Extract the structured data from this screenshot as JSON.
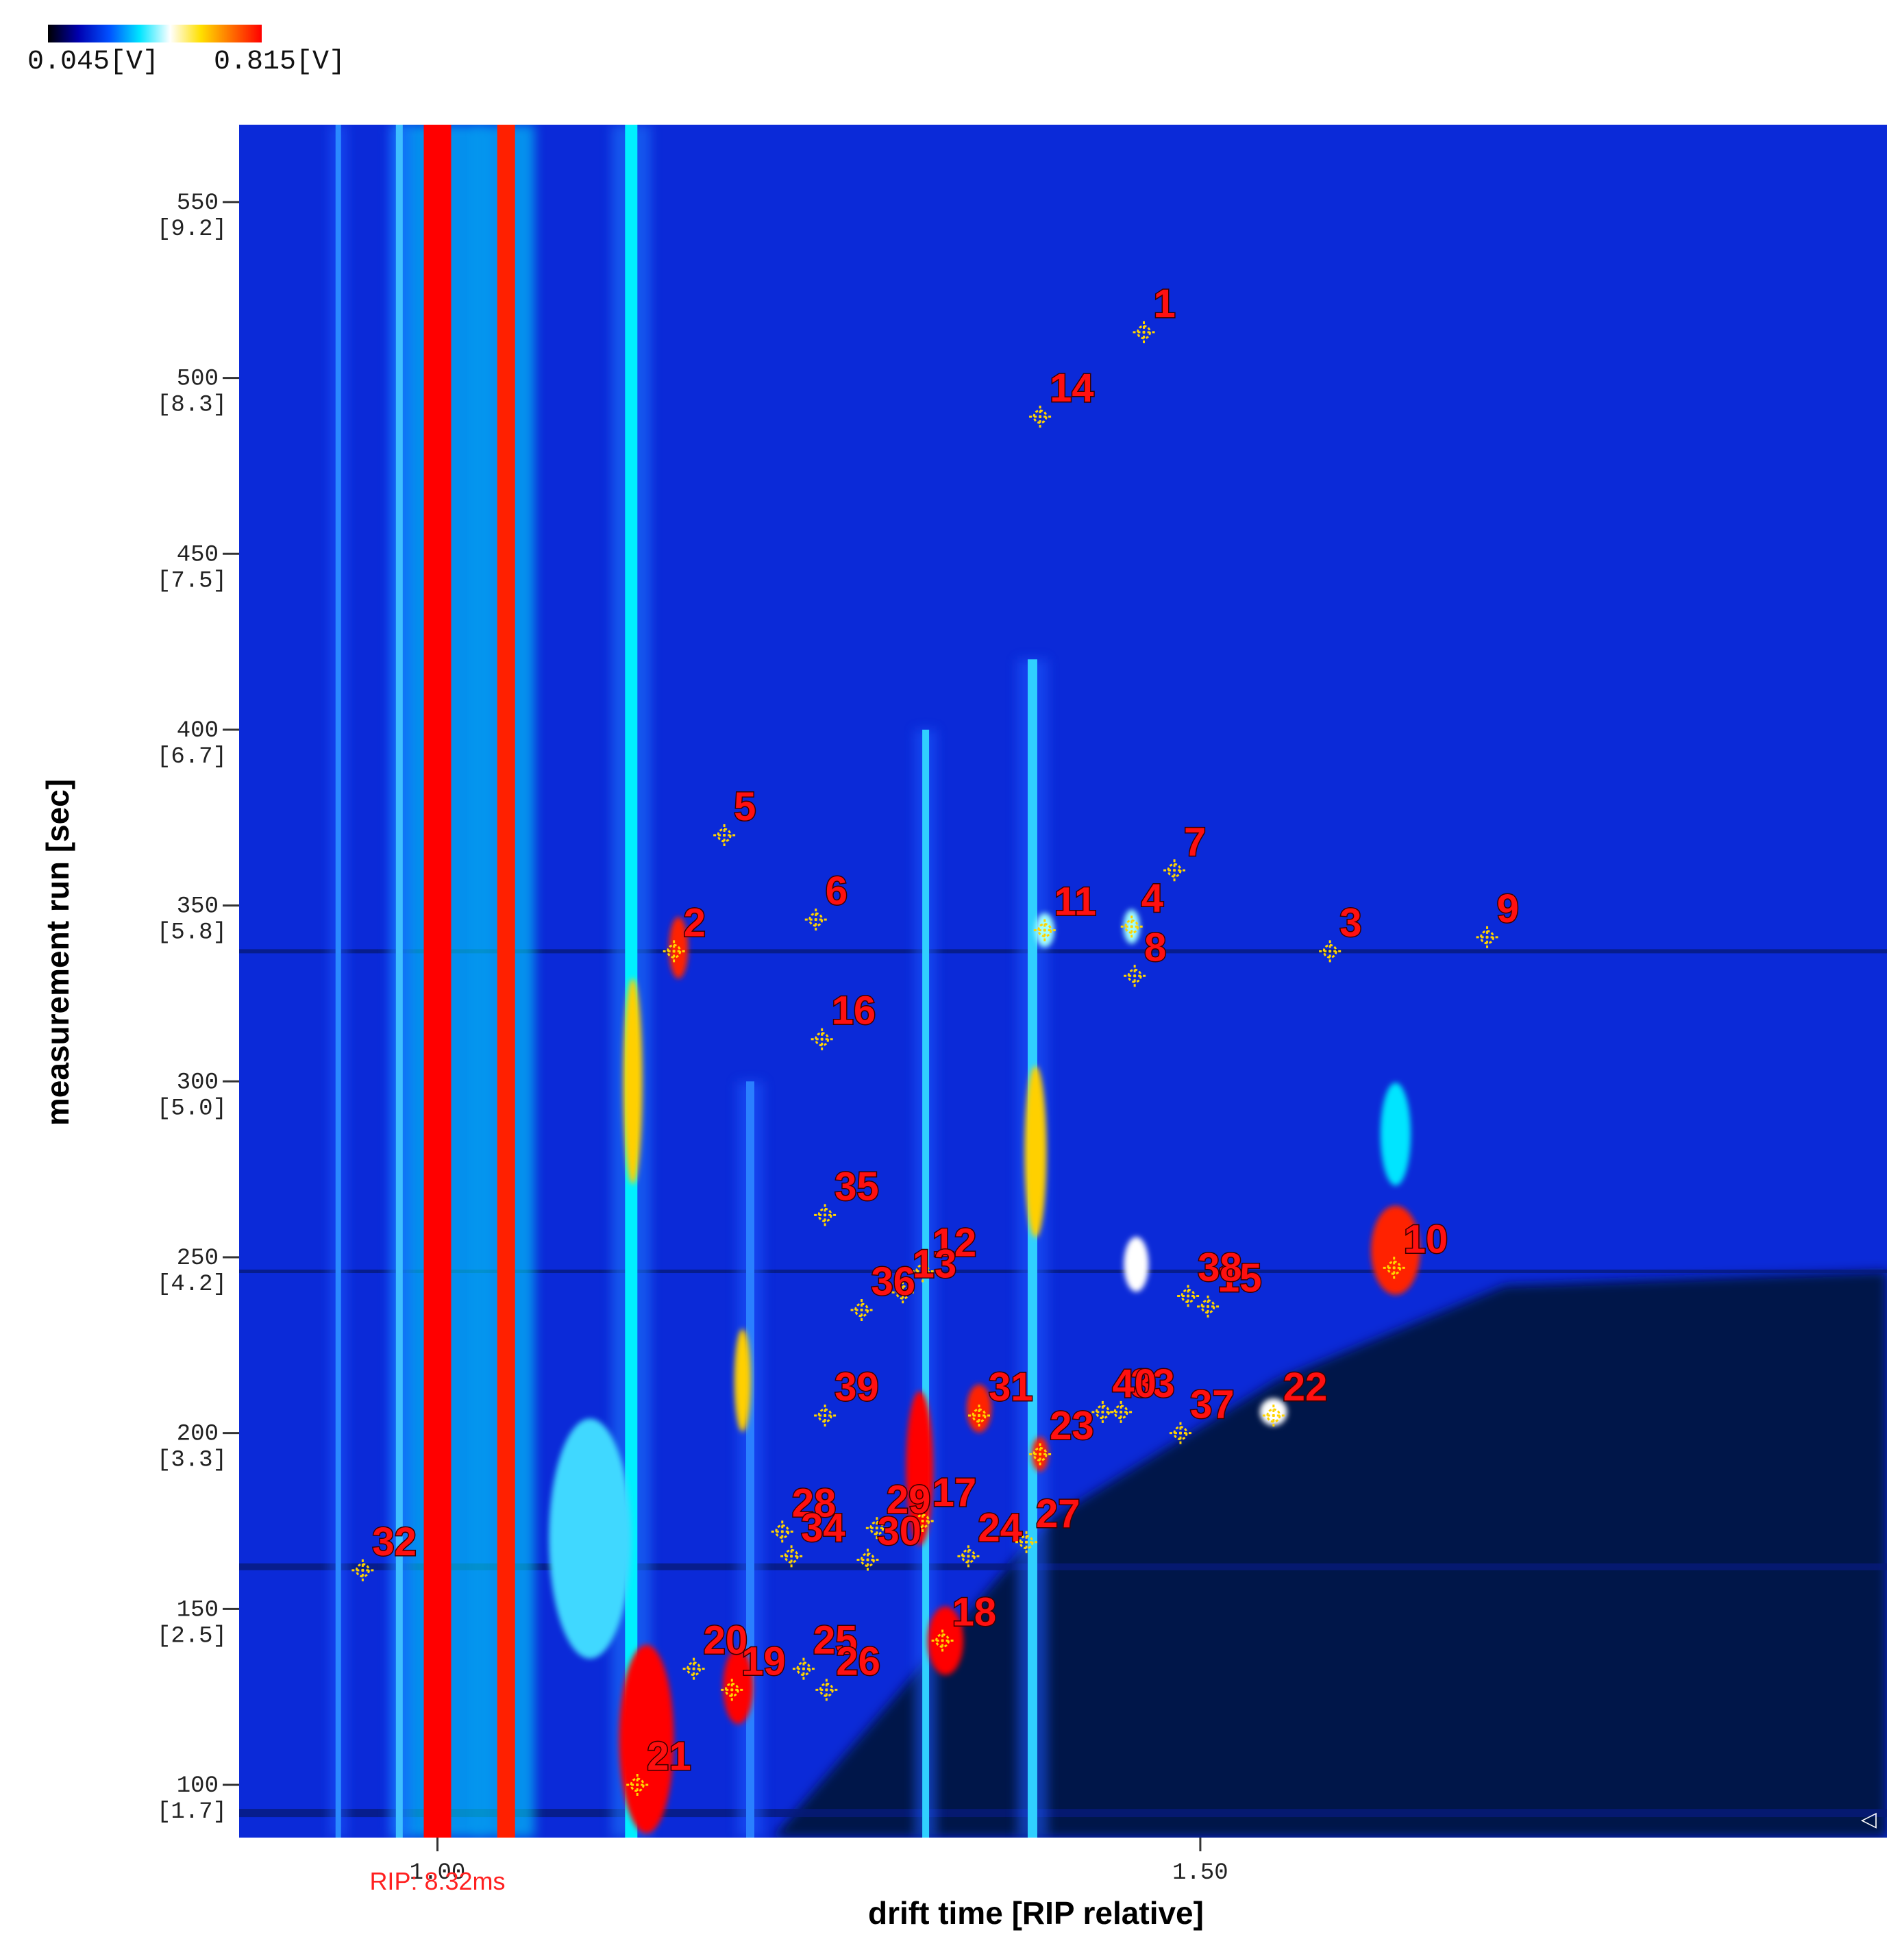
{
  "chart_data": {
    "type": "heatmap",
    "colorbar": {
      "min_label": "0.045[V]",
      "max_label": "0.815[V]",
      "colors": [
        "#000000",
        "#0000b0",
        "#0050ff",
        "#00e5ff",
        "#ffffff",
        "#ffe000",
        "#ff7000",
        "#ff0000"
      ]
    },
    "xlabel": "drift time [RIP relative]",
    "ylabel": "measurement run [sec]",
    "xlim": [
      0.87,
      1.95
    ],
    "ylim": [
      85,
      572
    ],
    "x_ticks": [
      {
        "value": 1.0,
        "label": "1.00"
      },
      {
        "value": 1.5,
        "label": "1.50"
      }
    ],
    "y_ticks": [
      {
        "value": 100,
        "label": "100",
        "sub": "[1.7]"
      },
      {
        "value": 150,
        "label": "150",
        "sub": "[2.5]"
      },
      {
        "value": 200,
        "label": "200",
        "sub": "[3.3]"
      },
      {
        "value": 250,
        "label": "250",
        "sub": "[4.2]"
      },
      {
        "value": 300,
        "label": "300",
        "sub": "[5.0]"
      },
      {
        "value": 350,
        "label": "350",
        "sub": "[5.8]"
      },
      {
        "value": 400,
        "label": "400",
        "sub": "[6.7]"
      },
      {
        "value": 450,
        "label": "450",
        "sub": "[7.5]"
      },
      {
        "value": 500,
        "label": "500",
        "sub": "[8.3]"
      },
      {
        "value": 550,
        "label": "550",
        "sub": "[9.2]"
      }
    ],
    "rip_label": "RIP: 8.32ms",
    "rip_x": 1.0,
    "markers": [
      {
        "label": "1",
        "x": 1.463,
        "y": 513
      },
      {
        "label": "2",
        "x": 1.155,
        "y": 337
      },
      {
        "label": "3",
        "x": 1.585,
        "y": 337
      },
      {
        "label": "4",
        "x": 1.455,
        "y": 344
      },
      {
        "label": "5",
        "x": 1.188,
        "y": 370
      },
      {
        "label": "6",
        "x": 1.248,
        "y": 346
      },
      {
        "label": "7",
        "x": 1.483,
        "y": 360
      },
      {
        "label": "8",
        "x": 1.457,
        "y": 330
      },
      {
        "label": "9",
        "x": 1.688,
        "y": 341
      },
      {
        "label": "10",
        "x": 1.627,
        "y": 247
      },
      {
        "label": "11",
        "x": 1.398,
        "y": 343
      },
      {
        "label": "12",
        "x": 1.318,
        "y": 246
      },
      {
        "label": "13",
        "x": 1.305,
        "y": 240
      },
      {
        "label": "14",
        "x": 1.395,
        "y": 489
      },
      {
        "label": "15",
        "x": 1.505,
        "y": 236
      },
      {
        "label": "16",
        "x": 1.252,
        "y": 312
      },
      {
        "label": "17",
        "x": 1.318,
        "y": 175
      },
      {
        "label": "18",
        "x": 1.331,
        "y": 141
      },
      {
        "label": "19",
        "x": 1.193,
        "y": 127
      },
      {
        "label": "20",
        "x": 1.168,
        "y": 133
      },
      {
        "label": "21",
        "x": 1.131,
        "y": 100
      },
      {
        "label": "22",
        "x": 1.548,
        "y": 205
      },
      {
        "label": "23",
        "x": 1.395,
        "y": 194
      },
      {
        "label": "24",
        "x": 1.348,
        "y": 165
      },
      {
        "label": "25",
        "x": 1.24,
        "y": 133
      },
      {
        "label": "26",
        "x": 1.255,
        "y": 127
      },
      {
        "label": "27",
        "x": 1.386,
        "y": 169
      },
      {
        "label": "28",
        "x": 1.226,
        "y": 172
      },
      {
        "label": "29",
        "x": 1.288,
        "y": 173
      },
      {
        "label": "30",
        "x": 1.282,
        "y": 164
      },
      {
        "label": "31",
        "x": 1.355,
        "y": 205
      },
      {
        "label": "32",
        "x": 0.951,
        "y": 161
      },
      {
        "label": "33",
        "x": 1.448,
        "y": 206
      },
      {
        "label": "34",
        "x": 1.232,
        "y": 165
      },
      {
        "label": "35",
        "x": 1.254,
        "y": 262
      },
      {
        "label": "36",
        "x": 1.278,
        "y": 235
      },
      {
        "label": "37",
        "x": 1.487,
        "y": 200
      },
      {
        "label": "38",
        "x": 1.492,
        "y": 239
      },
      {
        "label": "39",
        "x": 1.254,
        "y": 205
      },
      {
        "label": "40",
        "x": 1.436,
        "y": 206
      }
    ]
  }
}
